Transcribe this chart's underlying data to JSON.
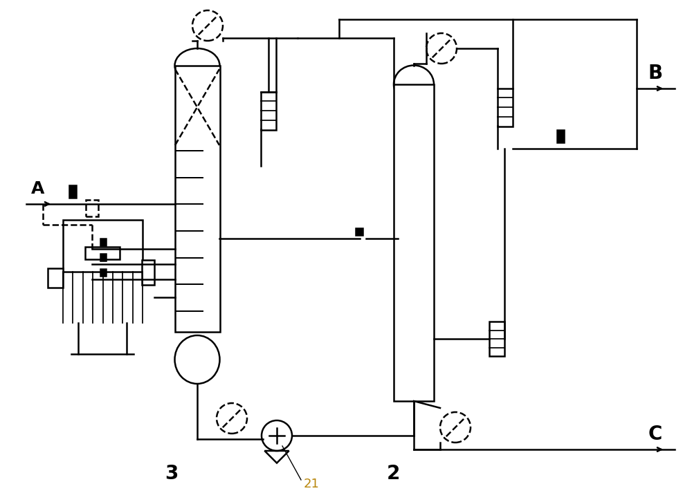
{
  "bg_color": "#ffffff",
  "line_color": "#000000",
  "fig_width": 10.0,
  "fig_height": 7.26,
  "dpi": 100,
  "label_A": "A",
  "label_B": "B",
  "label_C": "C",
  "label_3": "3",
  "label_2": "2",
  "label_21": "21"
}
